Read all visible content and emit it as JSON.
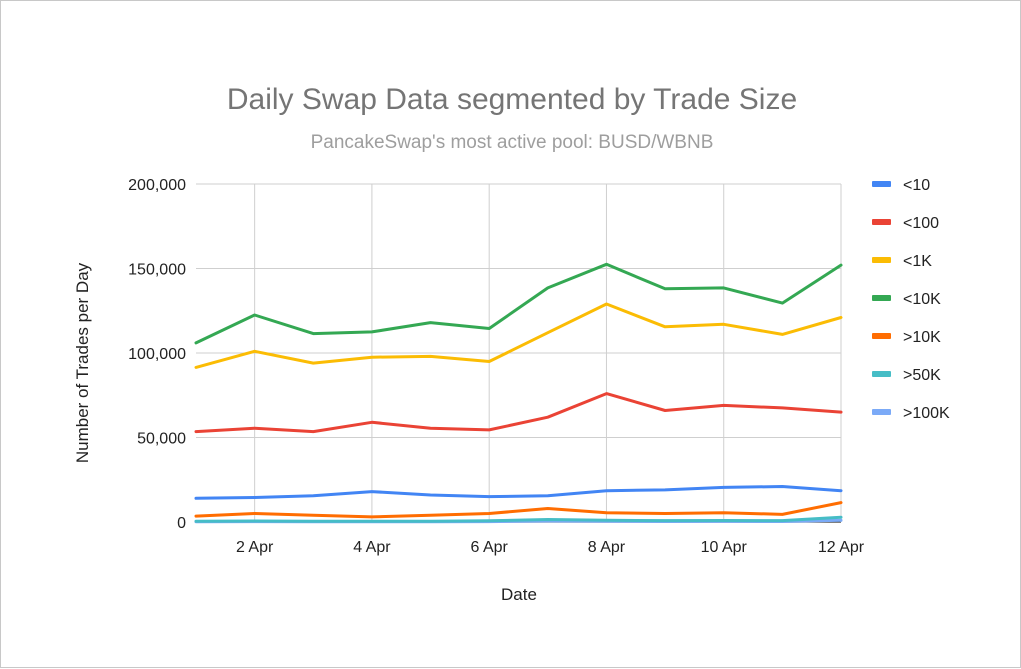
{
  "chart_data": {
    "type": "line",
    "title": "Daily Swap Data segmented by Trade Size",
    "subtitle": "PancakeSwap's most active pool: BUSD/WBNB",
    "xlabel": "Date",
    "ylabel": "Number of Trades per Day",
    "ylim": [
      0,
      200000
    ],
    "yticks": [
      0,
      50000,
      100000,
      150000,
      200000
    ],
    "ytick_labels": [
      "0",
      "50,000",
      "100,000",
      "150,000",
      "200,000"
    ],
    "x": [
      1,
      2,
      3,
      4,
      5,
      6,
      7,
      8,
      9,
      10,
      11,
      12
    ],
    "xlim": [
      1,
      12
    ],
    "xticks": [
      2,
      4,
      6,
      8,
      10,
      12
    ],
    "xtick_labels": [
      "2 Apr",
      "4 Apr",
      "6 Apr",
      "8 Apr",
      "10 Apr",
      "12 Apr"
    ],
    "grid": true,
    "legend_position": "right",
    "series": [
      {
        "name": "<10",
        "color": "#4285f4",
        "values": [
          14000,
          14500,
          15500,
          18000,
          16000,
          15000,
          15500,
          18500,
          19000,
          20500,
          21000,
          18500
        ]
      },
      {
        "name": "<100",
        "color": "#ea4335",
        "values": [
          53500,
          55500,
          53500,
          59000,
          55500,
          54500,
          62000,
          76000,
          66000,
          69000,
          67500,
          65000
        ]
      },
      {
        "name": "<1K",
        "color": "#fbbc04",
        "values": [
          91500,
          101000,
          94000,
          97500,
          98000,
          95000,
          112000,
          129000,
          115500,
          117000,
          111000,
          121000
        ]
      },
      {
        "name": "<10K",
        "color": "#34a853",
        "values": [
          106000,
          122500,
          111500,
          112500,
          118000,
          114500,
          138500,
          152500,
          138000,
          138500,
          129500,
          152000
        ]
      },
      {
        "name": ">10K",
        "color": "#ff6d01",
        "values": [
          3500,
          5000,
          4000,
          3000,
          4000,
          5000,
          8000,
          5500,
          5000,
          5500,
          4500,
          11500
        ]
      },
      {
        "name": ">50K",
        "color": "#46bdc6",
        "values": [
          400,
          600,
          500,
          400,
          500,
          700,
          1500,
          1000,
          800,
          900,
          800,
          2800
        ]
      },
      {
        "name": ">100K",
        "color": "#7baaf7",
        "values": [
          150,
          250,
          200,
          150,
          200,
          250,
          600,
          400,
          300,
          350,
          300,
          1000
        ]
      }
    ]
  }
}
